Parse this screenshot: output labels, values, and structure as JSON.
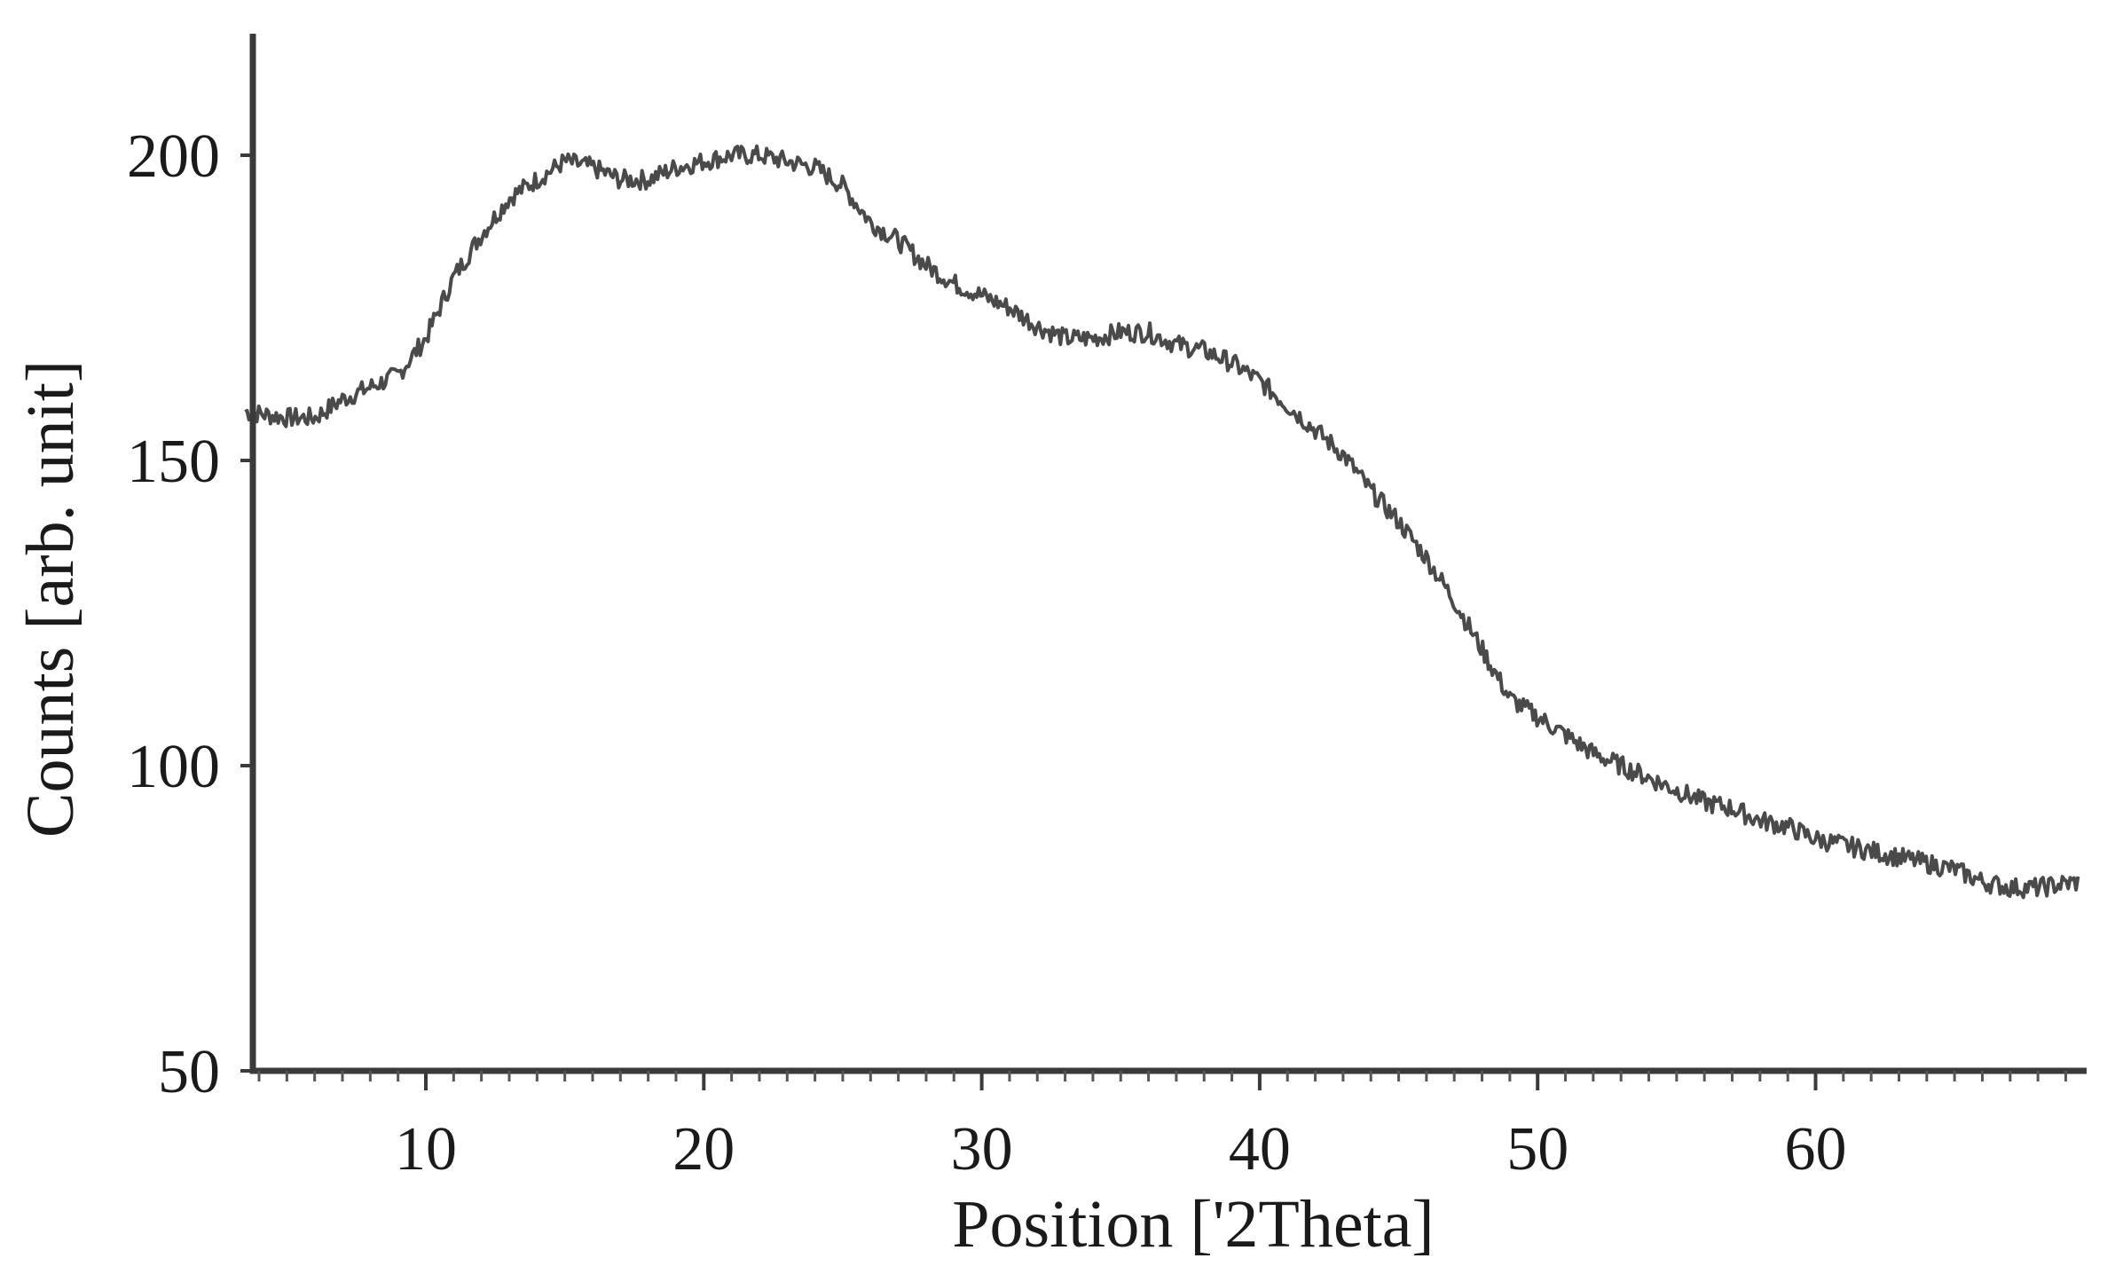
{
  "chart_data": {
    "type": "line",
    "title": "",
    "xlabel": "Position ['2Theta]",
    "ylabel": "Counts [arb. unit]",
    "xlim": [
      3.5,
      69.5
    ],
    "ylim": [
      50,
      220
    ],
    "xticks": [
      10,
      20,
      30,
      40,
      50,
      60
    ],
    "yticks": [
      50,
      100,
      150,
      200
    ],
    "xtick_labels": [
      "10",
      "20",
      "30",
      "40",
      "50",
      "60"
    ],
    "ytick_labels": [
      "50",
      "100",
      "150",
      "200"
    ],
    "grid": false,
    "legend": "none",
    "line_color": "#4a4a4a",
    "series": [
      {
        "x": [
          3.5,
          5,
          6,
          7,
          8,
          9,
          10,
          11,
          12,
          13,
          14,
          15,
          16,
          17,
          18,
          19,
          20,
          21,
          22,
          23,
          24,
          25,
          26,
          27,
          28,
          29,
          30,
          31,
          32,
          33,
          34,
          35,
          36,
          37,
          38,
          39,
          40,
          41,
          42,
          43,
          44,
          45,
          46,
          47,
          48,
          49,
          50,
          51,
          52,
          53,
          54,
          55,
          56,
          57,
          58,
          59,
          60,
          61,
          62,
          63,
          64,
          65,
          66,
          67,
          68,
          69.5
        ],
        "values": [
          158,
          157,
          157,
          160,
          162,
          164,
          170,
          180,
          187,
          193,
          196,
          199,
          198,
          196,
          196,
          198,
          199,
          200,
          200,
          199,
          198,
          195,
          189,
          186,
          182,
          179,
          177,
          175,
          172,
          170,
          170,
          171,
          171,
          169,
          168,
          166,
          163,
          159,
          155,
          151,
          145,
          140,
          134,
          127,
          119,
          111,
          108,
          105,
          102,
          100,
          98,
          96,
          94,
          93,
          91,
          90,
          88,
          87,
          86,
          85,
          84,
          83,
          81,
          80,
          80,
          81
        ]
      }
    ]
  }
}
